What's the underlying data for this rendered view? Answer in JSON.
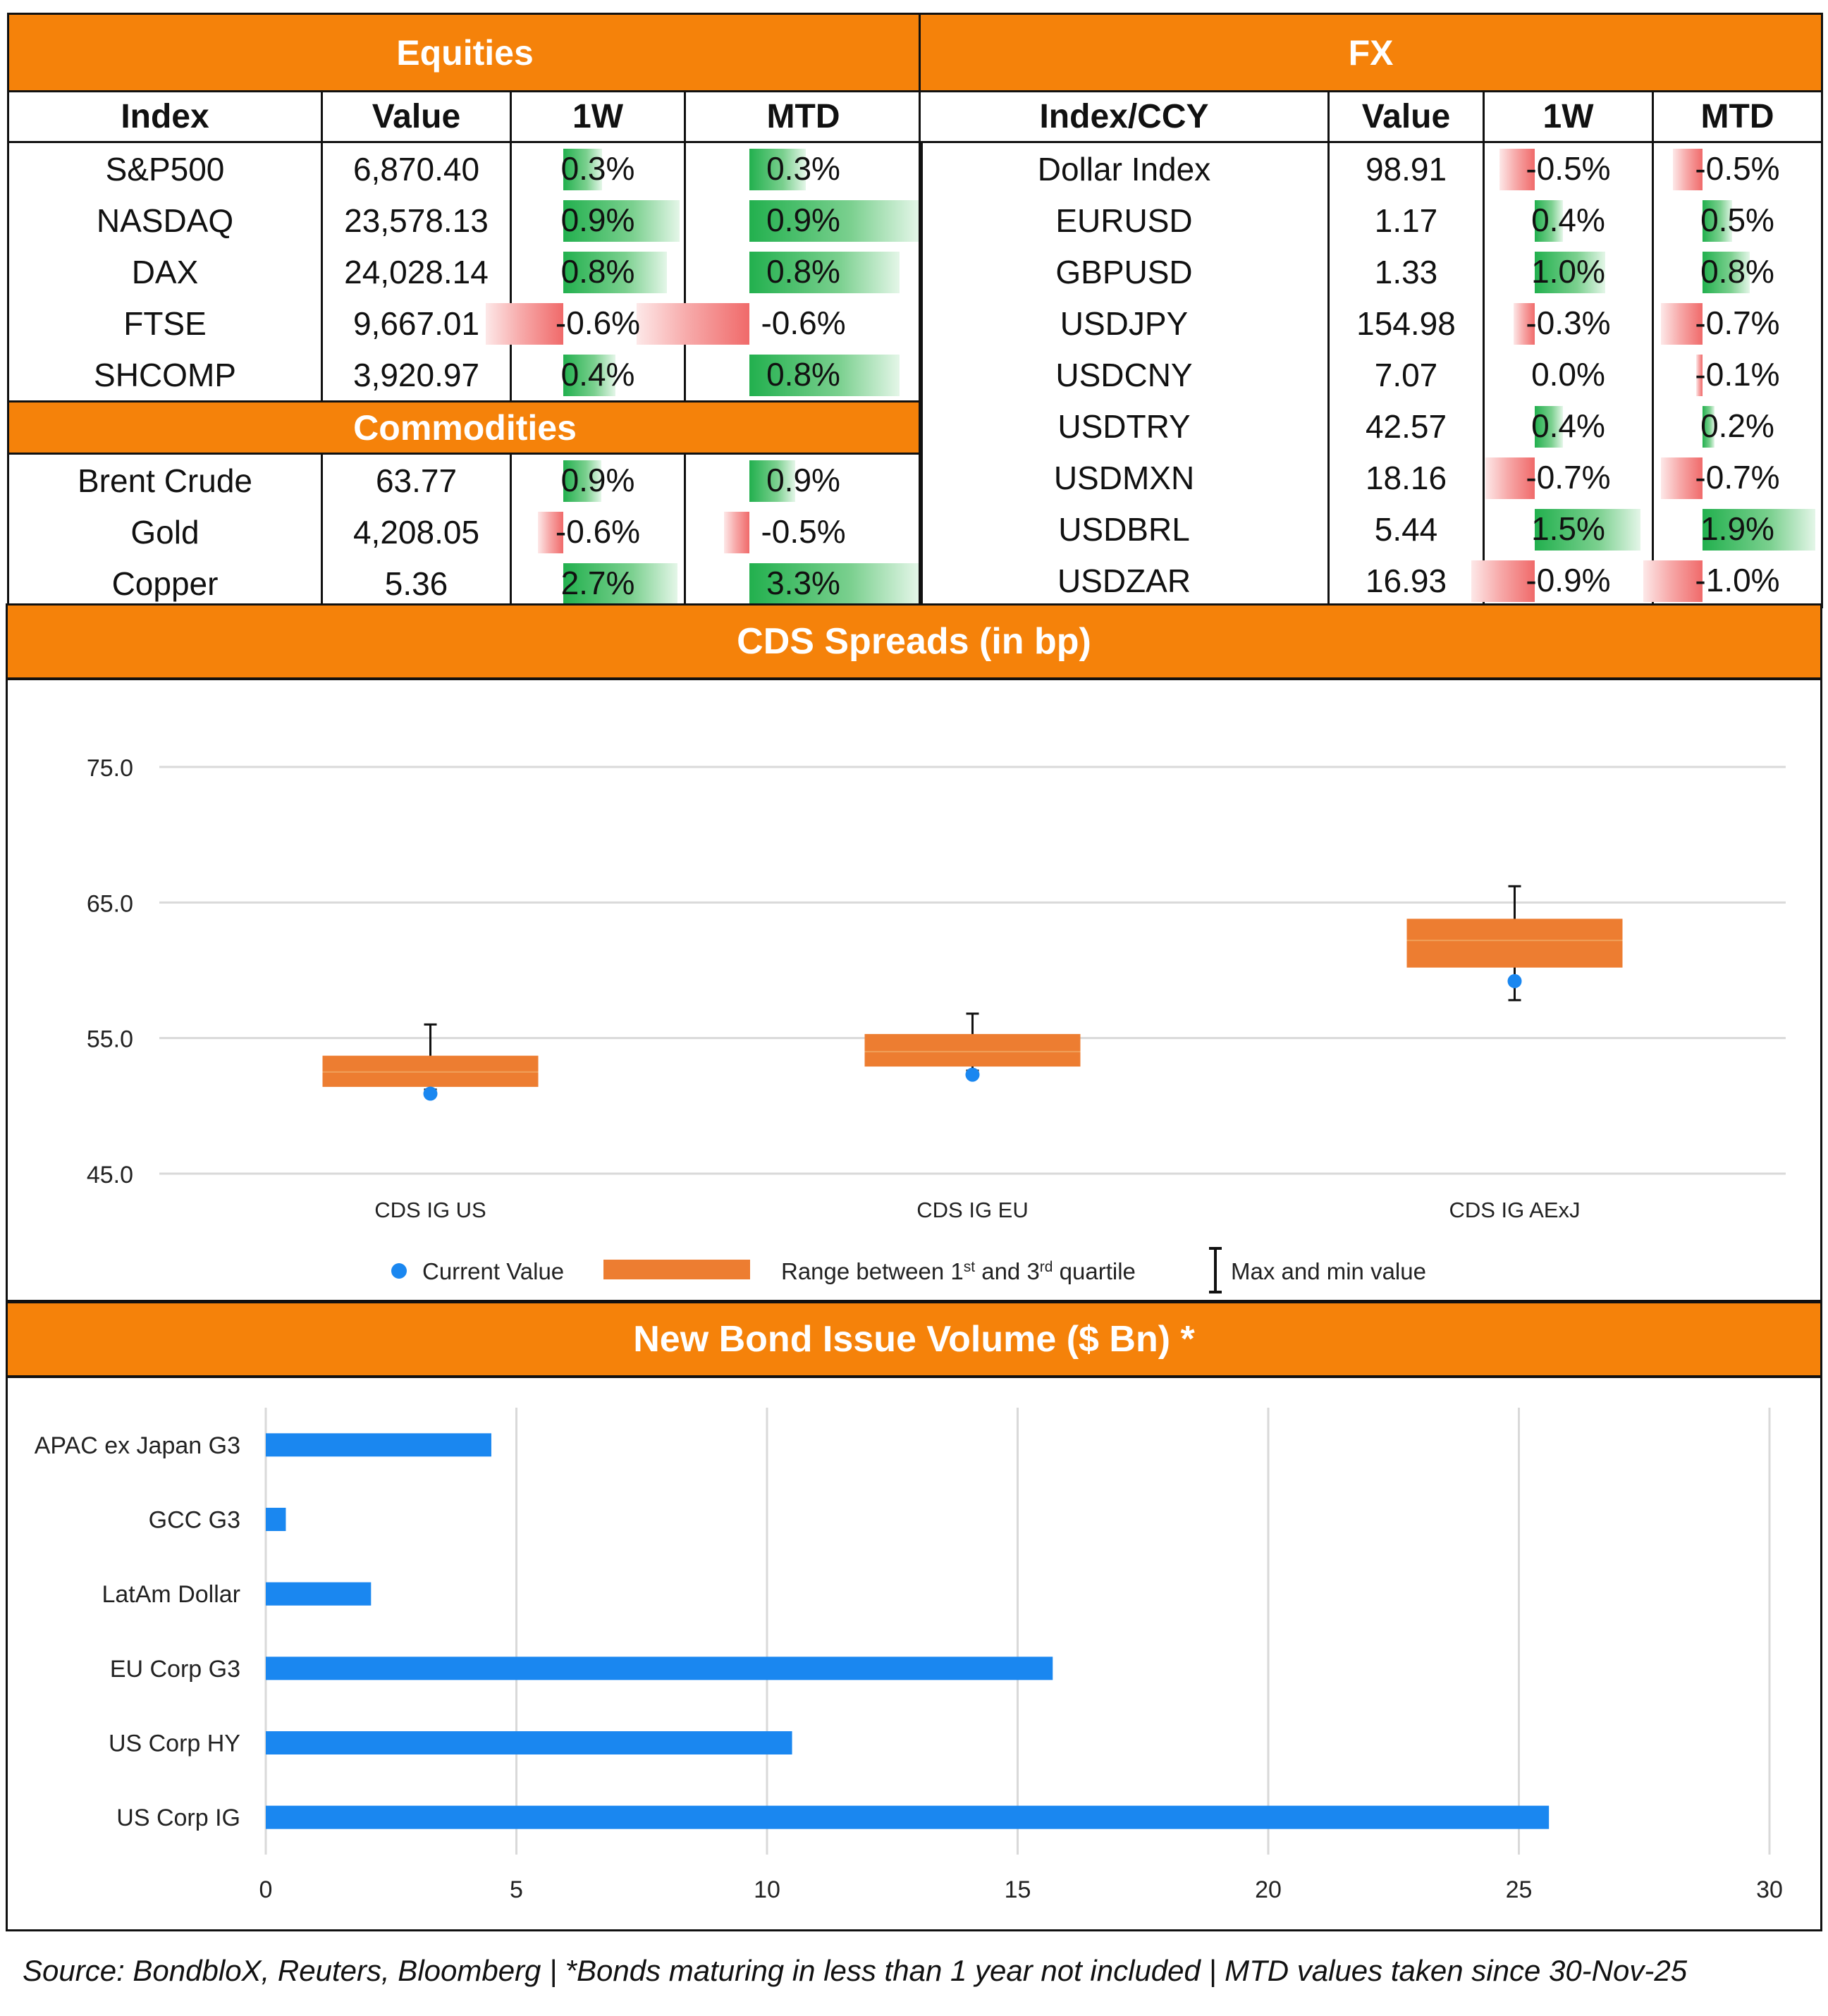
{
  "equities": {
    "title": "Equities",
    "columns": [
      "Index",
      "Value",
      "1W",
      "MTD"
    ],
    "rows": [
      {
        "name": "S&P500",
        "value": "6,870.40",
        "w1": "0.3%",
        "mtd": "0.3%",
        "w1_num": 0.3,
        "mtd_num": 0.3
      },
      {
        "name": "NASDAQ",
        "value": "23,578.13",
        "w1": "0.9%",
        "mtd": "0.9%",
        "w1_num": 0.9,
        "mtd_num": 0.9
      },
      {
        "name": "DAX",
        "value": "24,028.14",
        "w1": "0.8%",
        "mtd": "0.8%",
        "w1_num": 0.8,
        "mtd_num": 0.8
      },
      {
        "name": "FTSE",
        "value": "9,667.01",
        "w1": "-0.6%",
        "mtd": "-0.6%",
        "w1_num": -0.6,
        "mtd_num": -0.6
      },
      {
        "name": "SHCOMP",
        "value": "3,920.97",
        "w1": "0.4%",
        "mtd": "0.8%",
        "w1_num": 0.4,
        "mtd_num": 0.8
      }
    ]
  },
  "commodities": {
    "title": "Commodities",
    "rows": [
      {
        "name": "Brent Crude",
        "value": "63.77",
        "w1": "0.9%",
        "mtd": "0.9%",
        "w1_num": 0.9,
        "mtd_num": 0.9
      },
      {
        "name": "Gold",
        "value": "4,208.05",
        "w1": "-0.6%",
        "mtd": "-0.5%",
        "w1_num": -0.6,
        "mtd_num": -0.5
      },
      {
        "name": "Copper",
        "value": "5.36",
        "w1": "2.7%",
        "mtd": "3.3%",
        "w1_num": 2.7,
        "mtd_num": 3.3
      }
    ]
  },
  "fx": {
    "title": "FX",
    "columns": [
      "Index/CCY",
      "Value",
      "1W",
      "MTD"
    ],
    "rows": [
      {
        "name": "Dollar Index",
        "value": "98.91",
        "w1": "-0.5%",
        "mtd": "-0.5%",
        "w1_num": -0.5,
        "mtd_num": -0.5
      },
      {
        "name": "EURUSD",
        "value": "1.17",
        "w1": "0.4%",
        "mtd": "0.5%",
        "w1_num": 0.4,
        "mtd_num": 0.5
      },
      {
        "name": "GBPUSD",
        "value": "1.33",
        "w1": "1.0%",
        "mtd": "0.8%",
        "w1_num": 1.0,
        "mtd_num": 0.8
      },
      {
        "name": "USDJPY",
        "value": "154.98",
        "w1": "-0.3%",
        "mtd": "-0.7%",
        "w1_num": -0.3,
        "mtd_num": -0.7
      },
      {
        "name": "USDCNY",
        "value": "7.07",
        "w1": "0.0%",
        "mtd": "-0.1%",
        "w1_num": 0.0,
        "mtd_num": -0.1
      },
      {
        "name": "USDTRY",
        "value": "42.57",
        "w1": "0.4%",
        "mtd": "0.2%",
        "w1_num": 0.4,
        "mtd_num": 0.2
      },
      {
        "name": "USDMXN",
        "value": "18.16",
        "w1": "-0.7%",
        "mtd": "-0.7%",
        "w1_num": -0.7,
        "mtd_num": -0.7
      },
      {
        "name": "USDBRL",
        "value": "5.44",
        "w1": "1.5%",
        "mtd": "1.9%",
        "w1_num": 1.5,
        "mtd_num": 1.9
      },
      {
        "name": "USDZAR",
        "value": "16.93",
        "w1": "-0.9%",
        "mtd": "-1.0%",
        "w1_num": -0.9,
        "mtd_num": -1.0
      }
    ]
  },
  "colors": {
    "orange": "#f5820a",
    "box": "#ed7d31",
    "blue": "#1a87f0",
    "green": "#22b04e",
    "red": "#f06a6a"
  },
  "chart_data": [
    {
      "type": "box",
      "title": "CDS Spreads (in bp)",
      "categories": [
        "CDS IG US",
        "CDS IG EU",
        "CDS IG AExJ"
      ],
      "ylim": [
        45,
        75
      ],
      "yticks": [
        "45.0",
        "55.0",
        "65.0",
        "75.0"
      ],
      "yticks_num": [
        45,
        55,
        65,
        75
      ],
      "q1": [
        51.4,
        52.9,
        60.2
      ],
      "q3": [
        53.7,
        55.3,
        63.8
      ],
      "median": [
        52.5,
        54.0,
        62.2
      ],
      "min": [
        51.2,
        52.6,
        57.8
      ],
      "max": [
        56.0,
        56.8,
        66.2
      ],
      "current": [
        50.9,
        52.3,
        59.2
      ],
      "legend": {
        "current": "Current Value",
        "range": "Range between 1",
        "range_sup1": "st",
        "range_mid": " and 3",
        "range_sup2": "rd",
        "range_end": " quartile",
        "maxmin": "Max and min value"
      }
    },
    {
      "type": "bar",
      "orientation": "horizontal",
      "title": "New Bond Issue Volume ($ Bn) *",
      "categories": [
        "APAC ex Japan G3",
        "GCC G3",
        "LatAm Dollar",
        "EU Corp G3",
        "US Corp HY",
        "US Corp IG"
      ],
      "values": [
        4.5,
        0.4,
        2.1,
        15.7,
        10.5,
        25.6
      ],
      "xlim": [
        0,
        30
      ],
      "xticks": [
        "0",
        "5",
        "10",
        "15",
        "20",
        "25",
        "30"
      ],
      "xticks_num": [
        0,
        5,
        10,
        15,
        20,
        25,
        30
      ]
    }
  ],
  "source": "Source: BondbloX, Reuters, Bloomberg | *Bonds maturing in less than 1 year not included | MTD values taken since 30-Nov-25"
}
